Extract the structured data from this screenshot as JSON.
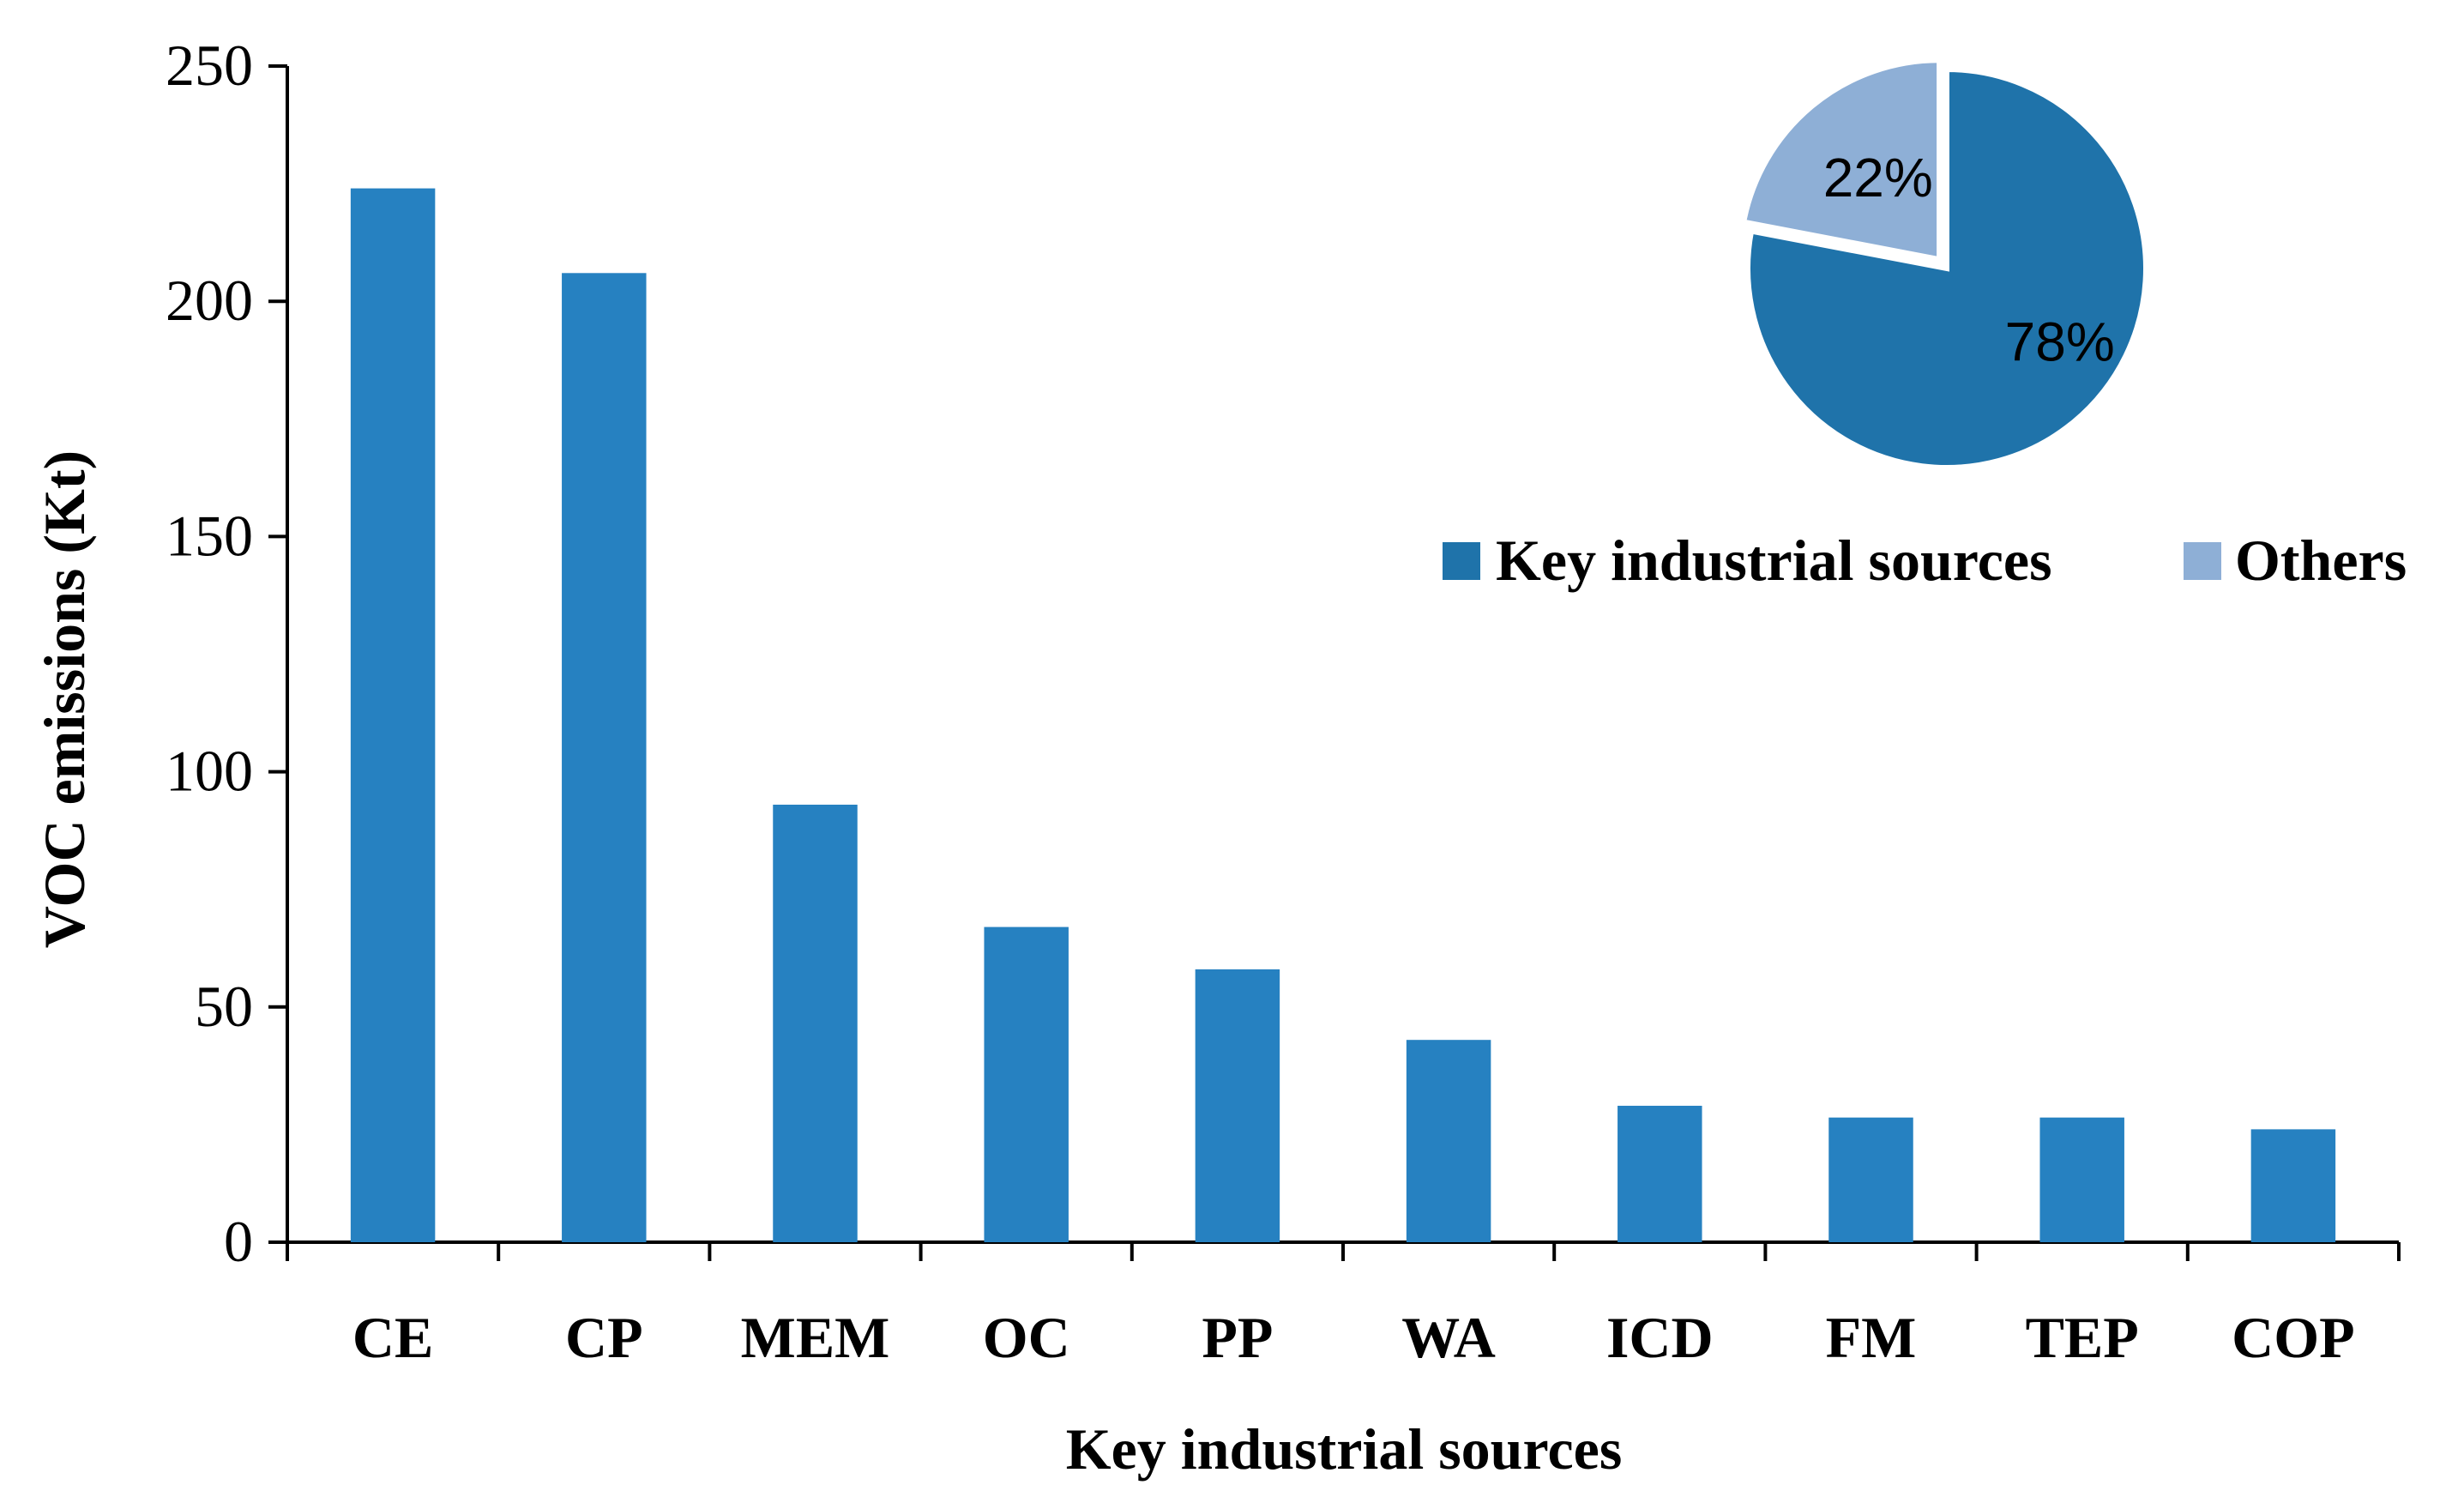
{
  "chart_data": [
    {
      "type": "bar",
      "title": "",
      "xlabel": "Key industrial sources",
      "ylabel": "VOC emissions (Kt)",
      "ylim": [
        0,
        250
      ],
      "yticks": [
        0,
        50,
        100,
        150,
        200,
        250
      ],
      "grid": false,
      "categories": [
        "CE",
        "CP",
        "MEM",
        "OC",
        "PP",
        "WA",
        "ICD",
        "FM",
        "TEP",
        "COP"
      ],
      "values": [
        224,
        206,
        93,
        67,
        58,
        43,
        29,
        26.5,
        26.5,
        24
      ],
      "bar_color": "#2681C1"
    },
    {
      "type": "pie",
      "labels": [
        "Key industrial sources",
        "Others"
      ],
      "values": [
        78,
        22
      ],
      "data_labels": [
        "78%",
        "22%"
      ],
      "colors": [
        "#1F73AA",
        "#8EAFD6"
      ],
      "exploded": "Others",
      "legend_position": "below-pie"
    }
  ]
}
